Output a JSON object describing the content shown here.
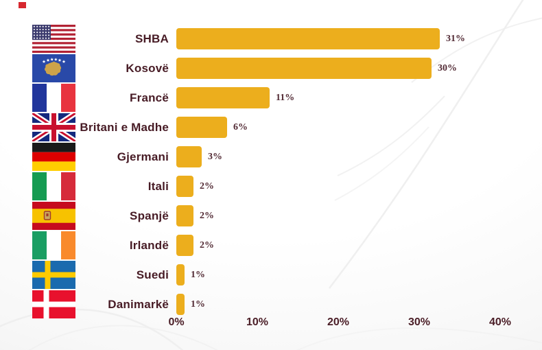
{
  "decor": {
    "red_square_color": "#D7282F",
    "watermark_stroke": "#ebebeb"
  },
  "colors": {
    "bar": "#ECAE1D",
    "category_text": "#471B25",
    "value_text": "#532B35",
    "axis_text": "#4A1D26"
  },
  "chart_data": {
    "type": "bar",
    "orientation": "horizontal",
    "title": "",
    "xlabel": "",
    "ylabel": "",
    "grid": false,
    "legend": false,
    "xlim": [
      0,
      40
    ],
    "x_axis_ticks": [
      "0%",
      "10%",
      "20%",
      "30%",
      "40%"
    ],
    "categories": [
      "SHBA",
      "Kosovë",
      "Francë",
      "Britani e Madhe",
      "Gjermani",
      "Itali",
      "Spanjë",
      "Irlandë",
      "Suedi",
      "Danimarkë"
    ],
    "values": [
      31,
      30,
      11,
      6,
      3,
      2,
      2,
      2,
      1,
      1
    ],
    "value_labels": [
      "31%",
      "30%",
      "11%",
      "6%",
      "3%",
      "2%",
      "2%",
      "2%",
      "1%",
      "1%"
    ],
    "flags": [
      "flag-usa-icon",
      "flag-kosovo-icon",
      "flag-france-icon",
      "flag-uk-icon",
      "flag-germany-icon",
      "flag-italy-icon",
      "flag-spain-icon",
      "flag-ireland-icon",
      "flag-sweden-icon",
      "flag-denmark-icon"
    ]
  }
}
